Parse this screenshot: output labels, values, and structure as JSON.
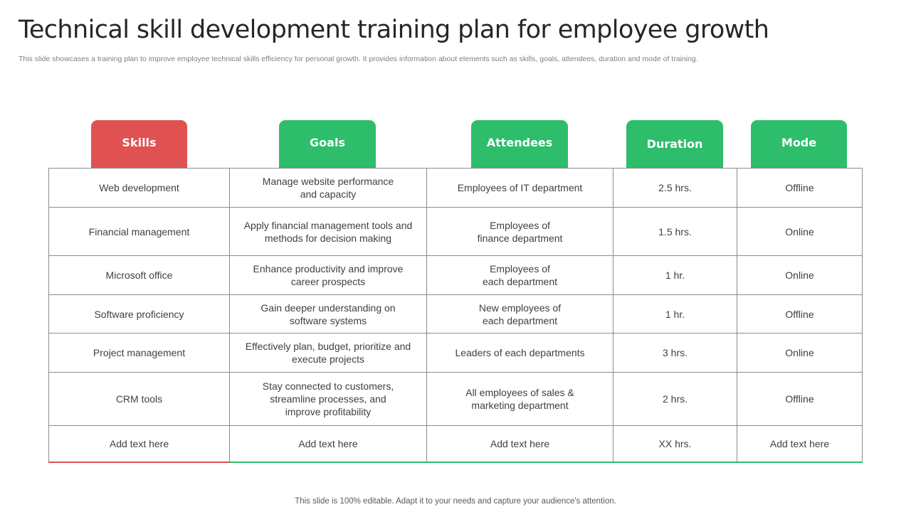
{
  "slide": {
    "title": "Technical skill development training plan for employee growth",
    "subtitle": "This slide showcases a training plan to improve employee technical skills efficiency for personal growth. It provides information about elements such as skills, goals, attendees, duration and mode of training.",
    "footer": "This slide is 100% editable. Adapt it to your needs and capture your audience's attention."
  },
  "colors": {
    "skills_tab": "#e05252",
    "other_tabs": "#2ebd6b"
  },
  "headers": [
    "Skills",
    "Goals",
    "Attendees",
    "Duration",
    "Mode"
  ],
  "rows": [
    [
      "Web development",
      "Manage website performance\nand capacity",
      "Employees of IT department",
      "2.5 hrs.",
      "Offline"
    ],
    [
      "Financial management",
      "Apply financial management tools and\nmethods for decision making",
      "Employees of\nfinance department",
      "1.5 hrs.",
      "Online"
    ],
    [
      "Microsoft office",
      "Enhance productivity and improve\ncareer prospects",
      "Employees of\neach department",
      "1 hr.",
      "Online"
    ],
    [
      "Software proficiency",
      "Gain deeper understanding on\nsoftware systems",
      "New employees of\neach department",
      "1 hr.",
      "Offline"
    ],
    [
      "Project management",
      "Effectively plan, budget, prioritize and\nexecute projects",
      "Leaders of each departments",
      "3 hrs.",
      "Online"
    ],
    [
      "CRM tools",
      "Stay connected to customers,\nstreamline processes, and\nimprove profitability",
      "All employees of sales &\nmarketing department",
      "2 hrs.",
      "Offline"
    ],
    [
      "Add text here",
      "Add text here",
      "Add text here",
      "XX hrs.",
      "Add text here"
    ]
  ]
}
